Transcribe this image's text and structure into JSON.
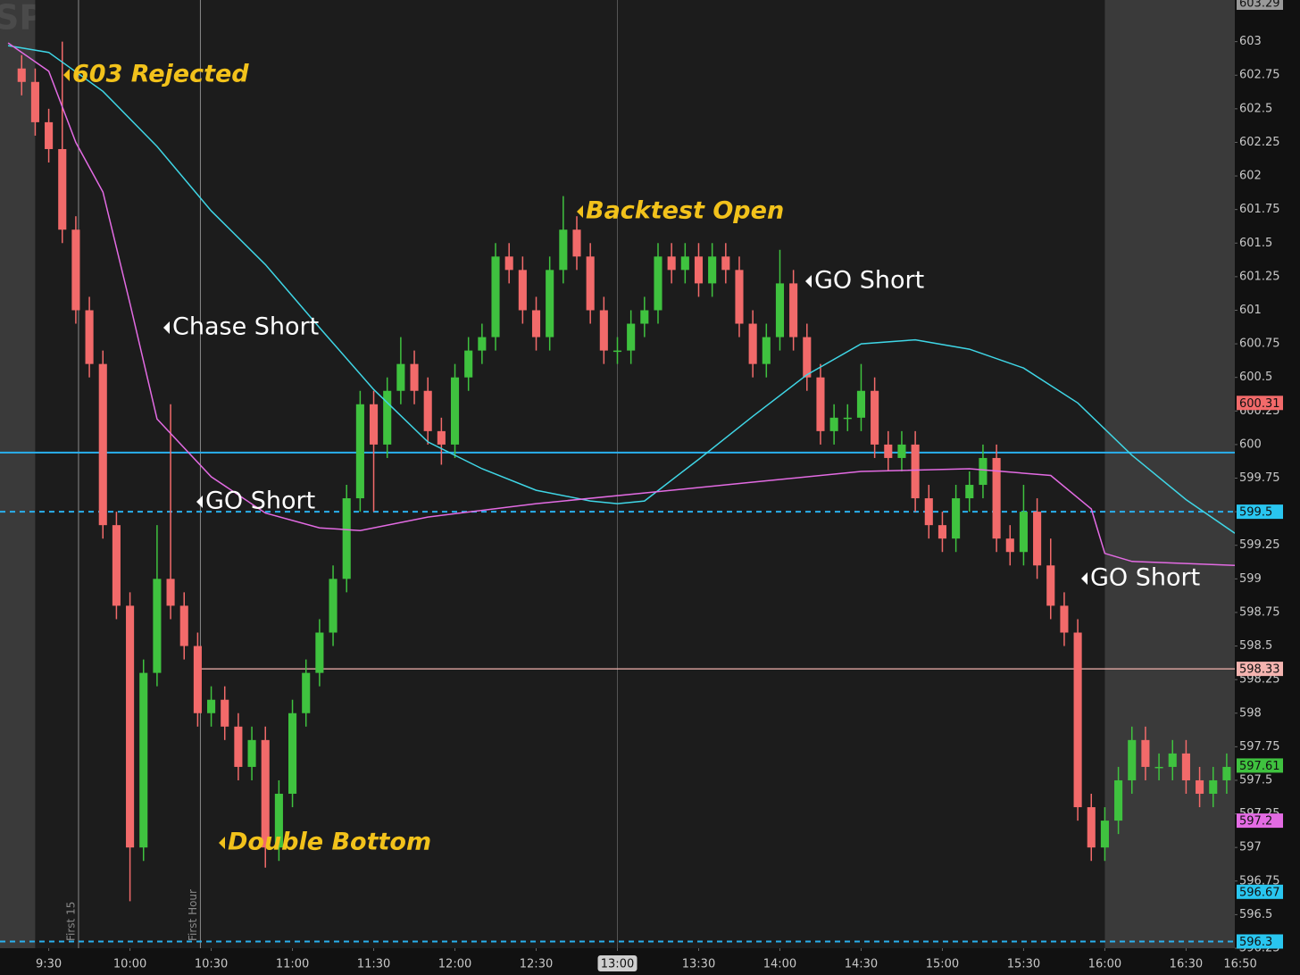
{
  "chart_data": {
    "type": "candlestick",
    "watermark": "SPDRs",
    "xlim": [
      552,
      1008
    ],
    "ylim": [
      596.25,
      603.31
    ],
    "xticks": [
      {
        "value": 570,
        "label": "9:30"
      },
      {
        "value": 600,
        "label": "10:00"
      },
      {
        "value": 630,
        "label": "10:30"
      },
      {
        "value": 660,
        "label": "11:00"
      },
      {
        "value": 690,
        "label": "11:30"
      },
      {
        "value": 720,
        "label": "12:00"
      },
      {
        "value": 750,
        "label": "12:30"
      },
      {
        "value": 780,
        "label": "13:00"
      },
      {
        "value": 810,
        "label": "13:30"
      },
      {
        "value": 840,
        "label": "14:00"
      },
      {
        "value": 870,
        "label": "14:30"
      },
      {
        "value": 900,
        "label": "15:00"
      },
      {
        "value": 930,
        "label": "15:30"
      },
      {
        "value": 960,
        "label": "16:00"
      },
      {
        "value": 990,
        "label": "16:30"
      },
      {
        "value": 1010,
        "label": "16:50"
      }
    ],
    "yticks": [
      596.25,
      596.5,
      596.75,
      597,
      597.25,
      597.5,
      597.75,
      598,
      598.25,
      598.5,
      598.75,
      599,
      599.25,
      599.5,
      599.75,
      600,
      600.25,
      600.5,
      600.75,
      601,
      601.25,
      601.5,
      601.75,
      602,
      602.25,
      602.5,
      602.75,
      603
    ],
    "cursor_x": 780,
    "regular_session": [
      565,
      960
    ],
    "up_color": "#3fc23f",
    "down_color": "#f26a6a",
    "x": [
      560,
      565,
      570,
      575,
      580,
      585,
      590,
      595,
      600,
      605,
      610,
      615,
      620,
      625,
      630,
      635,
      640,
      645,
      650,
      655,
      660,
      665,
      670,
      675,
      680,
      685,
      690,
      695,
      700,
      705,
      710,
      715,
      720,
      725,
      730,
      735,
      740,
      745,
      750,
      755,
      760,
      765,
      770,
      775,
      780,
      785,
      790,
      795,
      800,
      805,
      810,
      815,
      820,
      825,
      830,
      835,
      840,
      845,
      850,
      855,
      860,
      865,
      870,
      875,
      880,
      885,
      890,
      895,
      900,
      905,
      910,
      915,
      920,
      925,
      930,
      935,
      940,
      945,
      950,
      955,
      960,
      965,
      970,
      975,
      980,
      985,
      990,
      995,
      1000,
      1005
    ],
    "open": [
      602.8,
      602.7,
      602.4,
      602.2,
      601.6,
      601.0,
      600.6,
      599.4,
      598.8,
      597.0,
      598.3,
      599.0,
      598.8,
      598.5,
      598.0,
      598.1,
      597.9,
      597.6,
      597.8,
      597.0,
      597.4,
      598.0,
      598.3,
      598.6,
      599.0,
      599.6,
      600.3,
      600.0,
      600.4,
      600.6,
      600.4,
      600.1,
      600.0,
      600.5,
      600.7,
      600.8,
      601.4,
      601.3,
      601.0,
      600.8,
      601.3,
      601.6,
      601.4,
      601.0,
      600.7,
      600.7,
      600.9,
      601.0,
      601.4,
      601.3,
      601.4,
      601.2,
      601.4,
      601.3,
      600.9,
      600.6,
      600.8,
      601.2,
      600.8,
      600.5,
      600.1,
      600.2,
      600.2,
      600.4,
      600.0,
      599.9,
      600.0,
      599.6,
      599.4,
      599.3,
      599.6,
      599.7,
      599.9,
      599.3,
      599.2,
      599.5,
      599.1,
      598.8,
      598.6,
      597.3,
      597.0,
      597.2,
      597.5,
      597.8,
      597.6,
      597.6,
      597.7,
      597.5,
      597.4,
      597.5
    ],
    "high": [
      602.9,
      602.8,
      602.5,
      603.0,
      601.7,
      601.1,
      600.7,
      599.5,
      598.9,
      598.4,
      599.4,
      600.3,
      598.9,
      598.6,
      598.2,
      598.2,
      598.0,
      597.9,
      597.9,
      597.5,
      598.1,
      598.4,
      598.7,
      599.1,
      599.7,
      600.4,
      600.4,
      600.5,
      600.8,
      600.7,
      600.5,
      600.2,
      600.6,
      600.8,
      600.9,
      601.5,
      601.5,
      601.4,
      601.1,
      601.4,
      601.85,
      601.7,
      601.5,
      601.1,
      600.8,
      601.0,
      601.1,
      601.5,
      601.5,
      601.5,
      601.5,
      601.5,
      601.5,
      601.4,
      601.0,
      600.9,
      601.45,
      601.3,
      600.9,
      600.6,
      600.3,
      600.3,
      600.6,
      600.5,
      600.1,
      600.1,
      600.1,
      599.7,
      599.5,
      599.7,
      599.8,
      600.0,
      600.0,
      599.4,
      599.7,
      599.6,
      599.3,
      598.9,
      598.7,
      597.4,
      597.3,
      597.6,
      597.9,
      597.9,
      597.7,
      597.8,
      597.8,
      597.6,
      597.6,
      597.7
    ],
    "low": [
      602.6,
      602.3,
      602.1,
      601.5,
      600.9,
      600.5,
      599.3,
      598.7,
      596.6,
      596.9,
      598.2,
      598.7,
      598.4,
      597.9,
      597.9,
      597.8,
      597.5,
      597.5,
      596.85,
      596.9,
      597.3,
      597.9,
      598.2,
      598.5,
      598.9,
      599.5,
      599.5,
      599.9,
      600.3,
      600.3,
      600.0,
      599.85,
      599.9,
      600.4,
      600.6,
      600.7,
      601.2,
      600.9,
      600.7,
      600.7,
      601.2,
      601.3,
      600.9,
      600.6,
      600.6,
      600.6,
      600.8,
      600.9,
      601.2,
      601.2,
      601.1,
      601.1,
      601.2,
      600.8,
      600.5,
      600.5,
      600.7,
      600.7,
      600.4,
      600.0,
      600.0,
      600.1,
      600.1,
      599.9,
      599.8,
      599.8,
      599.5,
      599.3,
      599.2,
      599.2,
      599.5,
      599.6,
      599.2,
      599.1,
      599.1,
      599.0,
      598.7,
      598.5,
      597.2,
      596.9,
      596.9,
      597.1,
      597.4,
      597.5,
      597.5,
      597.5,
      597.4,
      597.3,
      597.3,
      597.4
    ],
    "close": [
      602.7,
      602.4,
      602.2,
      601.6,
      601.0,
      600.6,
      599.4,
      598.8,
      597.0,
      598.3,
      599.0,
      598.8,
      598.5,
      598.0,
      598.1,
      597.9,
      597.6,
      597.8,
      597.0,
      597.4,
      598.0,
      598.3,
      598.6,
      599.0,
      599.6,
      600.3,
      600.0,
      600.4,
      600.6,
      600.4,
      600.1,
      600.0,
      600.5,
      600.7,
      600.8,
      601.4,
      601.3,
      601.0,
      600.8,
      601.3,
      601.6,
      601.4,
      601.0,
      600.7,
      600.7,
      600.9,
      601.0,
      601.4,
      601.3,
      601.4,
      601.2,
      601.4,
      601.3,
      600.9,
      600.6,
      600.8,
      601.2,
      600.8,
      600.5,
      600.1,
      600.2,
      600.2,
      600.4,
      600.0,
      599.9,
      600.0,
      599.6,
      599.4,
      599.3,
      599.6,
      599.7,
      599.9,
      599.3,
      599.2,
      599.5,
      599.1,
      598.8,
      598.6,
      597.3,
      597.0,
      597.2,
      597.5,
      597.8,
      597.6,
      597.6,
      597.7,
      597.5,
      597.4,
      597.5,
      597.6
    ],
    "overlays": [
      {
        "color": "#3fd6e6",
        "x": [
          555,
          570,
          590,
          610,
          630,
          650,
          670,
          690,
          710,
          730,
          750,
          770,
          780,
          790,
          810,
          830,
          850,
          870,
          890,
          910,
          930,
          950,
          970,
          990,
          1008
        ],
        "values": [
          602.97,
          602.92,
          602.63,
          602.22,
          601.74,
          601.34,
          600.87,
          600.41,
          600.02,
          599.82,
          599.66,
          599.58,
          599.56,
          599.58,
          599.89,
          600.21,
          600.52,
          600.75,
          600.78,
          600.71,
          600.57,
          600.31,
          599.92,
          599.59,
          599.34
        ]
      },
      {
        "color": "#e36be3",
        "x": [
          555,
          570,
          580,
          590,
          600,
          610,
          630,
          650,
          670,
          685,
          710,
          750,
          790,
          830,
          870,
          910,
          940,
          955,
          960,
          970,
          1008
        ],
        "values": [
          602.99,
          602.78,
          602.25,
          601.88,
          601.05,
          600.19,
          599.76,
          599.49,
          599.38,
          599.36,
          599.46,
          599.56,
          599.64,
          599.72,
          599.8,
          599.82,
          599.77,
          599.52,
          599.19,
          599.13,
          599.1
        ]
      }
    ],
    "levels": [
      {
        "value": 599.94,
        "color": "#29b0ee",
        "style": "solid"
      },
      {
        "value": 599.5,
        "color": "#29b0ee",
        "style": "dashed"
      },
      {
        "value": 598.33,
        "color": "#f4b4b0",
        "style": "solid",
        "from": 626
      },
      {
        "value": 596.3,
        "color": "#29b0ee",
        "style": "dashed"
      }
    ],
    "price_labels": [
      {
        "value": 603.29,
        "color": "#9a9a9a"
      },
      {
        "value": 600.31,
        "color": "#f26a6a"
      },
      {
        "value": 599.5,
        "color": "#29c6f0"
      },
      {
        "value": 598.33,
        "color": "#f4b4b0"
      },
      {
        "value": 597.61,
        "color": "#3fc23f"
      },
      {
        "value": 597.2,
        "color": "#e36be3"
      },
      {
        "value": 596.67,
        "color": "#29c6f0"
      },
      {
        "value": 596.3,
        "color": "#29c6f0"
      }
    ],
    "markers": [
      {
        "x": 581,
        "label": "First 15"
      },
      {
        "x": 626,
        "label": "First Hour"
      }
    ],
    "annotations": [
      "603 Rejected",
      "Backtest Open",
      "Chase Short",
      "GO Short",
      "GO Short",
      "GO Short",
      "Double Bottom"
    ]
  }
}
